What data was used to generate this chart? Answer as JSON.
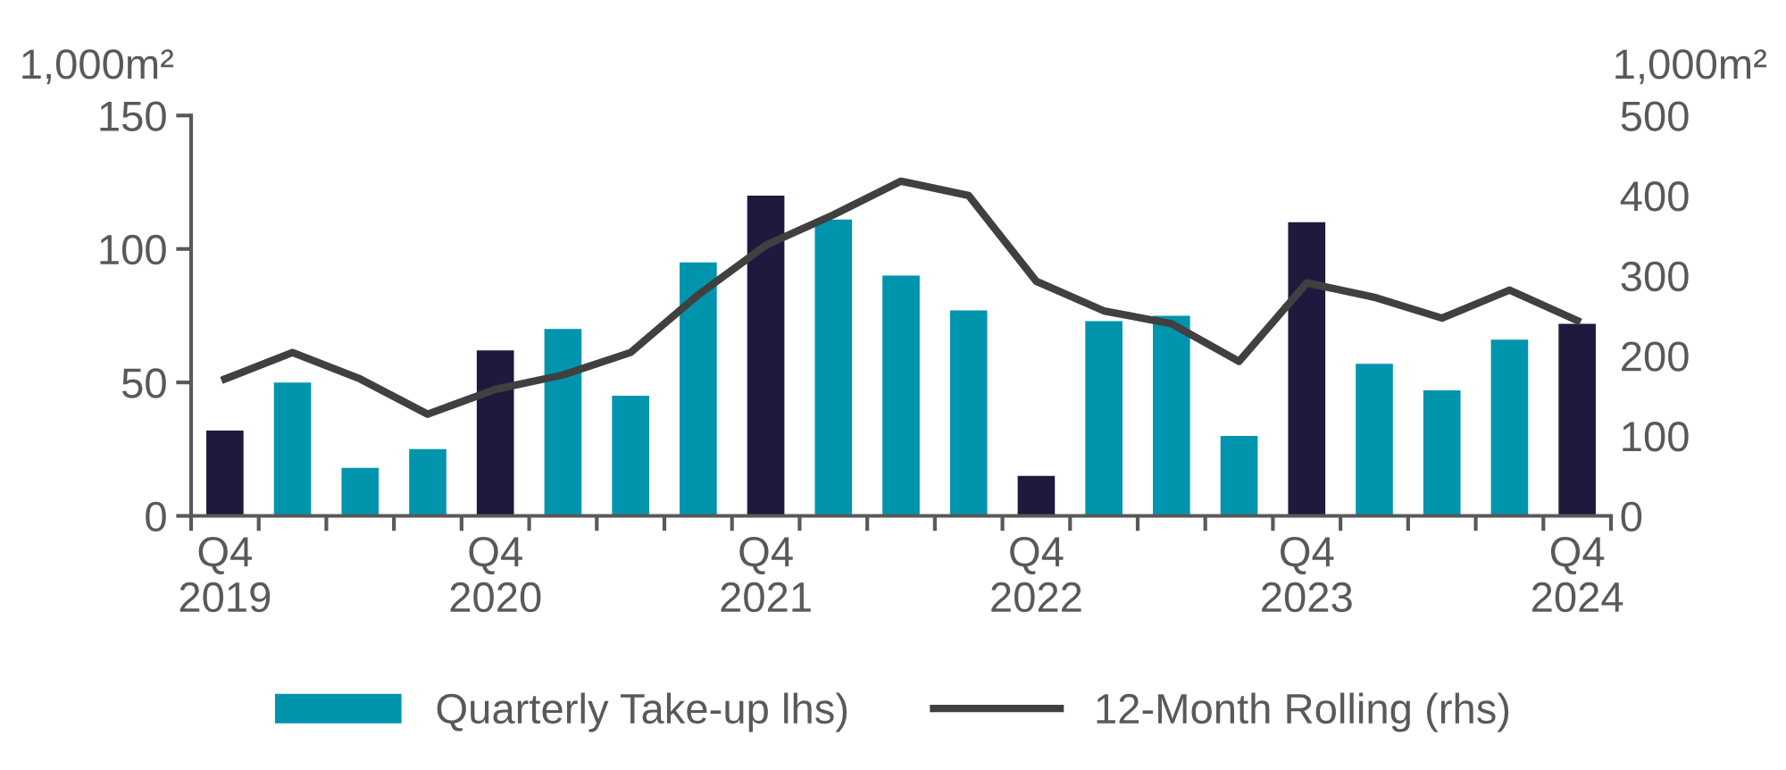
{
  "chart_data": {
    "type": "bar",
    "ylabel": "1,000m²",
    "y2label": "1,000m²",
    "categories": [
      "Q4\n2019",
      null,
      null,
      null,
      "Q4\n2020",
      null,
      null,
      null,
      "Q4\n2021",
      null,
      null,
      null,
      "Q4\n2022",
      null,
      null,
      null,
      "Q4\n2023",
      null,
      null,
      null,
      "Q4\n2024"
    ],
    "series": [
      {
        "name": "Quarterly Take-up lhs)",
        "color": "#0095ad",
        "colors": [
          "#1e1a3e",
          "#0095ad",
          "#0095ad",
          "#0095ad",
          "#1e1a3e",
          "#0095ad",
          "#0095ad",
          "#0095ad",
          "#1e1a3e",
          "#0095ad",
          "#0095ad",
          "#0095ad",
          "#1e1a3e",
          "#0095ad",
          "#0095ad",
          "#0095ad",
          "#1e1a3e",
          "#0095ad",
          "#0095ad",
          "#0095ad",
          "#1e1a3e"
        ],
        "values": [
          32,
          50,
          18,
          25,
          62,
          70,
          45,
          95,
          120,
          111,
          90,
          77,
          15,
          73,
          75,
          30,
          110,
          57,
          47,
          66,
          72
        ]
      },
      {
        "name": "12-Month Rolling (rhs)",
        "type": "line",
        "axis": "y2",
        "color": "#404040",
        "values": [
          171,
          204,
          171,
          127,
          158,
          176,
          204,
          276,
          338,
          376,
          418,
          400,
          293,
          256,
          240,
          193,
          291,
          273,
          247,
          282,
          244
        ]
      }
    ],
    "ylim": [
      0,
      150
    ],
    "yticks": [
      0,
      50,
      100,
      150
    ],
    "y2lim": [
      0,
      500
    ],
    "y2ticks": [
      0,
      100,
      200,
      300,
      400,
      500
    ],
    "grid": false,
    "legend": "bottom",
    "marker": "none",
    "line_style": "solid"
  }
}
